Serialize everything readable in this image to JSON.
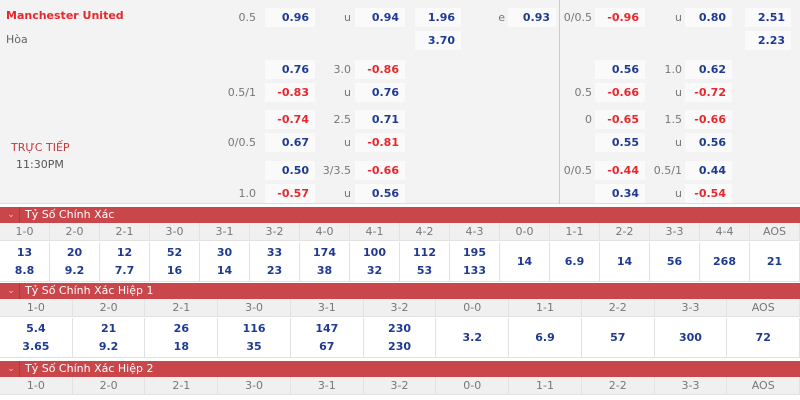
{
  "match": {
    "home": "Manchester United",
    "draw": "Hòa",
    "status": "TRỰC TIẾP",
    "time": "11:30PM"
  },
  "odds_rows": [
    {
      "hdp_line": "0.5",
      "hdp": "0.96",
      "ou_line": "u",
      "ou": "0.94",
      "x12": "1.96",
      "x_label": "e",
      "x2": "0.93",
      "h_hdp_line": "0/0.5",
      "h_hdp": "-0.96",
      "h_ou_line": "u",
      "h_ou": "0.80",
      "h_x12": "2.51"
    },
    {
      "x12": "3.70",
      "h_x12": "2.23"
    },
    {
      "hdp_line": "",
      "hdp": "0.76",
      "ou_line": "3.0",
      "ou": "-0.86",
      "h_hdp_line": "",
      "h_hdp": "0.56",
      "h_ou_line": "1.0",
      "h_ou": "0.62"
    },
    {
      "hdp_line": "0.5/1",
      "hdp": "-0.83",
      "ou_line": "u",
      "ou": "0.76",
      "h_hdp_line": "0.5",
      "h_hdp": "-0.66",
      "h_ou_line": "u",
      "h_ou": "-0.72"
    },
    {
      "hdp_line": "",
      "hdp": "-0.74",
      "ou_line": "2.5",
      "ou": "0.71",
      "h_hdp_line": "0",
      "h_hdp": "-0.65",
      "h_ou_line": "1.5",
      "h_ou": "-0.66"
    },
    {
      "hdp_line": "0/0.5",
      "hdp": "0.67",
      "ou_line": "u",
      "ou": "-0.81",
      "h_hdp_line": "",
      "h_hdp": "0.55",
      "h_ou_line": "u",
      "h_ou": "0.56"
    },
    {
      "hdp_line": "",
      "hdp": "0.50",
      "ou_line": "3/3.5",
      "ou": "-0.66",
      "h_hdp_line": "0/0.5",
      "h_hdp": "-0.44",
      "h_ou_line": "0.5/1",
      "h_ou": "0.44"
    },
    {
      "hdp_line": "1.0",
      "hdp": "-0.57",
      "ou_line": "u",
      "ou": "0.56",
      "h_hdp_line": "",
      "h_hdp": "0.34",
      "h_ou_line": "u",
      "h_ou": "-0.54"
    }
  ],
  "sections": [
    {
      "title": "Tỷ Số Chính Xác",
      "headers": [
        "1-0",
        "2-0",
        "2-1",
        "3-0",
        "3-1",
        "3-2",
        "4-0",
        "4-1",
        "4-2",
        "4-3",
        "0-0",
        "1-1",
        "2-2",
        "3-3",
        "4-4",
        "AOS"
      ],
      "values": [
        [
          "13",
          "8.8"
        ],
        [
          "20",
          "9.2"
        ],
        [
          "12",
          "7.7"
        ],
        [
          "52",
          "16"
        ],
        [
          "30",
          "14"
        ],
        [
          "33",
          "23"
        ],
        [
          "174",
          "38"
        ],
        [
          "100",
          "32"
        ],
        [
          "112",
          "53"
        ],
        [
          "195",
          "133"
        ],
        [
          "14"
        ],
        [
          "6.9"
        ],
        [
          "14"
        ],
        [
          "56"
        ],
        [
          "268"
        ],
        [
          "21"
        ]
      ]
    },
    {
      "title": "Tỷ Số Chính Xác Hiệp 1",
      "headers": [
        "1-0",
        "2-0",
        "2-1",
        "3-0",
        "3-1",
        "3-2",
        "0-0",
        "1-1",
        "2-2",
        "3-3",
        "AOS"
      ],
      "values": [
        [
          "5.4",
          "3.65"
        ],
        [
          "21",
          "9.2"
        ],
        [
          "26",
          "18"
        ],
        [
          "116",
          "35"
        ],
        [
          "147",
          "67"
        ],
        [
          "230",
          "230"
        ],
        [
          "3.2"
        ],
        [
          "6.9"
        ],
        [
          "57"
        ],
        [
          "300"
        ],
        [
          "72"
        ]
      ]
    },
    {
      "title": "Tỷ Số Chính Xác Hiệp 2",
      "headers": [
        "1-0",
        "2-0",
        "2-1",
        "3-0",
        "3-1",
        "3-2",
        "0-0",
        "1-1",
        "2-2",
        "3-3",
        "AOS"
      ],
      "values": []
    }
  ],
  "colors": {
    "section_bar": "#c9464b",
    "positive": "#1f3a93",
    "negative": "#e8262b"
  },
  "icons": {
    "section_toggle": "chevron-down-icon"
  }
}
